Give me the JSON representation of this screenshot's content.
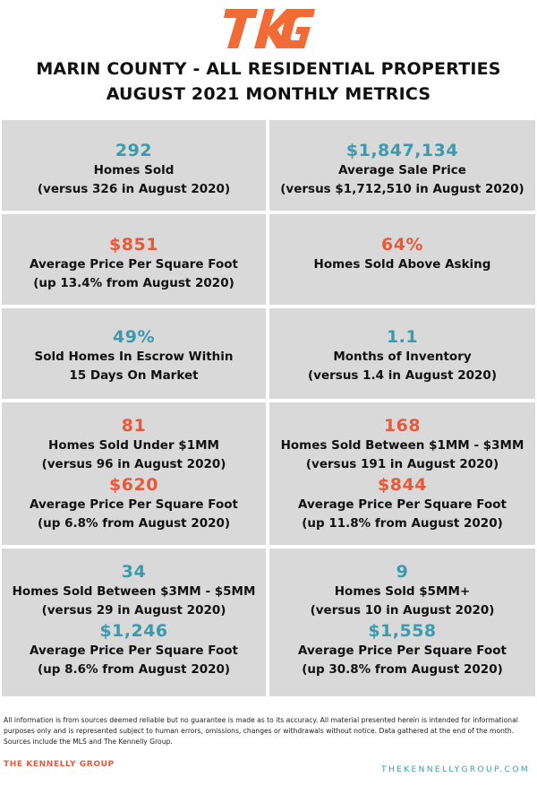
{
  "brand": {
    "logo_text": "TKG",
    "logo_color": "#f26a36",
    "footer_name": "THE KENNELLY GROUP",
    "footer_url": "THEKENNELLYGROUP.COM"
  },
  "header": {
    "title_line1": "MARIN COUNTY - ALL RESIDENTIAL PROPERTIES",
    "title_line2": "AUGUST 2021 MONTHLY METRICS"
  },
  "colors": {
    "teal": "#3a9aae",
    "orange": "#e8593c",
    "panel": "#d9d9d9"
  },
  "metrics": {
    "homes_sold": {
      "value": "292",
      "label": "Homes Sold",
      "note": "(versus 326 in August 2020)"
    },
    "avg_sale_price": {
      "value": "$1,847,134",
      "label": "Average Sale Price",
      "note": "(versus $1,712,510 in August 2020)"
    },
    "avg_ppsf": {
      "value": "$851",
      "label": "Average Price Per Square Foot",
      "note": "(up 13.4% from August 2020)"
    },
    "above_asking": {
      "value": "64%",
      "label": "Homes Sold Above Asking"
    },
    "escrow_15": {
      "value": "49%",
      "label_line1": "Sold Homes In Escrow Within",
      "label_line2": "15 Days On Market"
    },
    "inventory": {
      "value": "1.1",
      "label": "Months of Inventory",
      "note": "(versus 1.4 in August 2020)"
    },
    "under_1mm": {
      "value": "81",
      "label": "Homes Sold Under $1MM",
      "note": "(versus 96 in August 2020)",
      "ppsf_value": "$620",
      "ppsf_label": "Average Price Per Square Foot",
      "ppsf_note": "(up 6.8% from August 2020)"
    },
    "between_1_3": {
      "value": "168",
      "label": "Homes Sold Between $1MM - $3MM",
      "note": "(versus 191 in August 2020)",
      "ppsf_value": "$844",
      "ppsf_label": "Average Price Per Square Foot",
      "ppsf_note": "(up 11.8% from August 2020)"
    },
    "between_3_5": {
      "value": "34",
      "label": "Homes Sold Between $3MM - $5MM",
      "note": "(versus 29 in August 2020)",
      "ppsf_value": "$1,246",
      "ppsf_label": "Average Price Per Square Foot",
      "ppsf_note": "(up 8.6% from August 2020)"
    },
    "over_5": {
      "value": "9",
      "label": "Homes Sold $5MM+",
      "note": "(versus 10 in August 2020)",
      "ppsf_value": "$1,558",
      "ppsf_label": "Average Price Per Square Foot",
      "ppsf_note": "(up 30.8% from August 2020)"
    }
  },
  "disclaimer": "All information is from sources deemed reliable but no guarantee is made as to its accuracy. All material presented herein is intended for informational purposes only and is represented subject to human errors, omissions, changes or withdrawals without notice. Data gathered at the end of the month. Sources include the MLS and The Kennelly Group."
}
